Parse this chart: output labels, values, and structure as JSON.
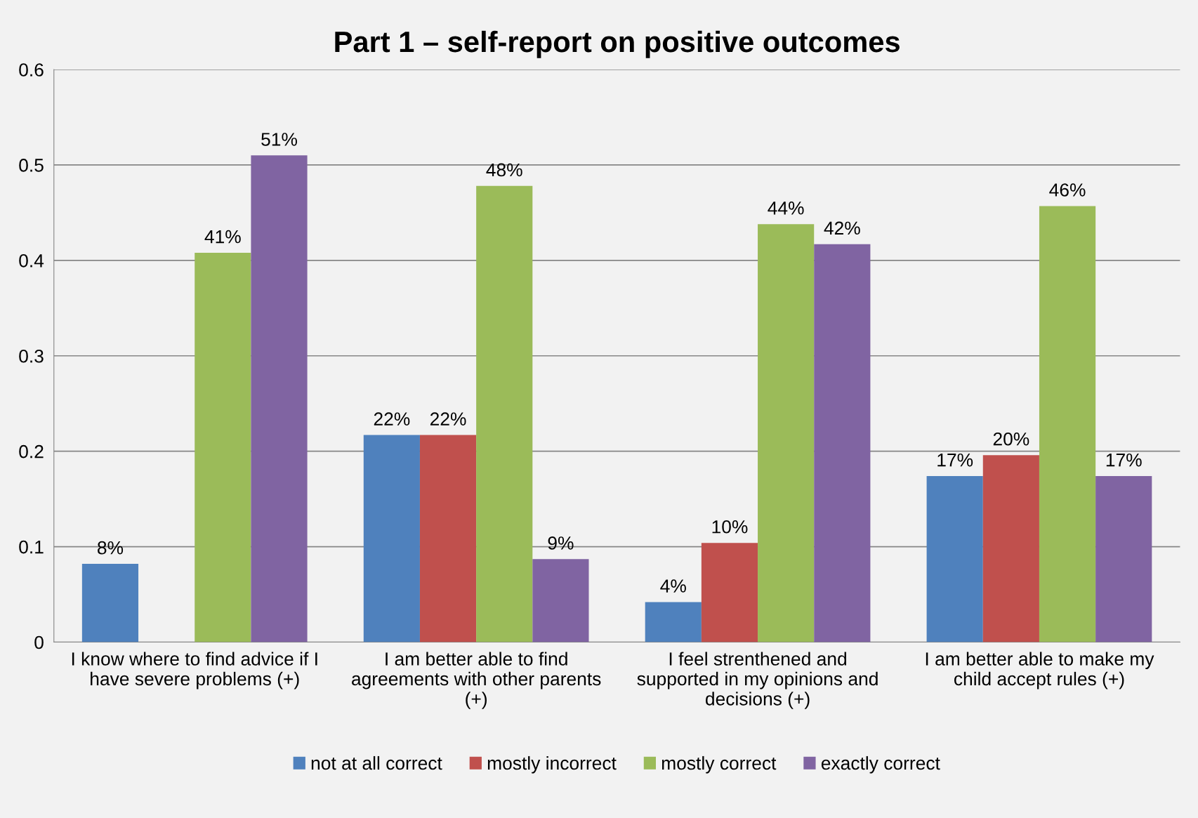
{
  "chart_data": {
    "type": "bar",
    "title": "Part 1 – self-report on positive outcomes",
    "categories": [
      "I know where to find advice if I\nhave severe problems (+)",
      "I am better able to find\nagreements with other parents\n(+)",
      "I feel strenthened and\nsupported in my opinions and\ndecisions (+)",
      "I am better able to make my\nchild accept rules (+)"
    ],
    "series": [
      {
        "name": "not at all correct",
        "color": "#4f81bd",
        "values": [
          0.082,
          0.217,
          0.042,
          0.174
        ],
        "value_labels": [
          "8%",
          "22%",
          "4%",
          "17%"
        ]
      },
      {
        "name": "mostly incorrect",
        "color": "#c0504d",
        "values": [
          0,
          0.217,
          0.104,
          0.196
        ],
        "value_labels": [
          null,
          "22%",
          "10%",
          "20%"
        ]
      },
      {
        "name": "mostly correct",
        "color": "#9bbb59",
        "values": [
          0.408,
          0.478,
          0.438,
          0.457
        ],
        "value_labels": [
          "41%",
          "48%",
          "44%",
          "46%"
        ]
      },
      {
        "name": "exactly correct",
        "color": "#8064a2",
        "values": [
          0.51,
          0.087,
          0.417,
          0.174
        ],
        "value_labels": [
          "51%",
          "9%",
          "42%",
          "17%"
        ]
      }
    ],
    "ylim": [
      0,
      0.6
    ],
    "yticks": [
      0,
      {
        "value": 0.1,
        "label": "0.1"
      },
      {
        "value": 0.2,
        "label": "0.2"
      },
      {
        "value": 0.3,
        "label": "0.3"
      },
      {
        "value": 0.4,
        "label": "0.4"
      },
      {
        "value": 0.5,
        "label": "0.5"
      },
      {
        "value": 0.6,
        "label": "0.6"
      }
    ],
    "grid": "y",
    "legend": "bottom"
  }
}
